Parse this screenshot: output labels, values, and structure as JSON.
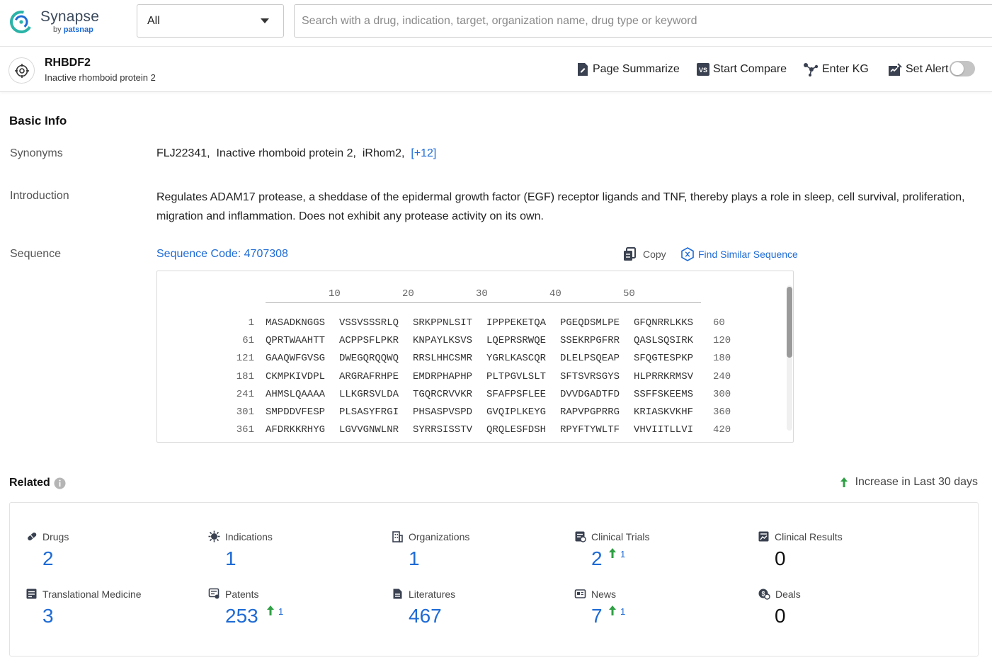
{
  "brand": {
    "name": "Synapse",
    "by": "by",
    "company": "patsnap"
  },
  "search": {
    "scope": "All",
    "placeholder": "Search with a drug, indication, target, organization name, drug type or keyword"
  },
  "entity": {
    "title": "RHBDF2",
    "subtitle": "Inactive rhomboid protein 2",
    "actions": {
      "summarize": "Page Summarize",
      "compare": "Start Compare",
      "kg": "Enter KG",
      "alert": "Set Alert"
    },
    "alert_enabled": false
  },
  "basic_info": {
    "title": "Basic Info",
    "synonyms_label": "Synonyms",
    "synonyms": [
      "FLJ22341,",
      "Inactive rhomboid protein 2,",
      "iRhom2,"
    ],
    "synonyms_more": "[+12]",
    "introduction_label": "Introduction",
    "introduction": "Regulates ADAM17 protease, a sheddase of the epidermal growth factor (EGF) receptor ligands and TNF, thereby plays a role in sleep, cell survival, proliferation, migration and inflammation. Does not exhibit any protease activity on its own.",
    "sequence_label": "Sequence",
    "sequence_code": "Sequence Code: 4707308",
    "copy_label": "Copy",
    "find_similar_label": "Find Similar Sequence",
    "ruler": [
      "10",
      "20",
      "30",
      "40",
      "50"
    ],
    "rows": [
      {
        "start": "1",
        "blocks": [
          "MASADKNGGS",
          "VSSVSSSRLQ",
          "SRKPPNLSIT",
          "IPPPEKETQA",
          "PGEQDSMLPE",
          "GFQNRRLKKS"
        ],
        "end": "60"
      },
      {
        "start": "61",
        "blocks": [
          "QPRTWAAHTT",
          "ACPPSFLPKR",
          "KNPAYLKSVS",
          "LQEPRSRWQE",
          "SSEKRPGFRR",
          "QASLSQSIRK"
        ],
        "end": "120"
      },
      {
        "start": "121",
        "blocks": [
          "GAAQWFGVSG",
          "DWEGQRQQWQ",
          "RRSLHHCSMR",
          "YGRLKASCQR",
          "DLELPSQEAP",
          "SFQGTESPKP"
        ],
        "end": "180"
      },
      {
        "start": "181",
        "blocks": [
          "CKMPKIVDPL",
          "ARGRAFRHPE",
          "EMDRPHAPHP",
          "PLTPGVLSLT",
          "SFTSVRSGYS",
          "HLPRRKRMSV"
        ],
        "end": "240"
      },
      {
        "start": "241",
        "blocks": [
          "AHMSLQAAAA",
          "LLKGRSVLDA",
          "TGQRCRVVKR",
          "SFAFPSFLEE",
          "DVVDGADTFD",
          "SSFFSKEEMS"
        ],
        "end": "300"
      },
      {
        "start": "301",
        "blocks": [
          "SMPDDVFESP",
          "PLSASYFRGI",
          "PHSASPVSPD",
          "GVQIPLKEYG",
          "RAPVPGPRRG",
          "KRIASKVKHF"
        ],
        "end": "360"
      },
      {
        "start": "361",
        "blocks": [
          "AFDRKKRHYG",
          "LGVVGNWLNR",
          "SYRRSISSTV",
          "QRQLESFDSH",
          "RPYFTYWLTF",
          "VHVIITLLVI"
        ],
        "end": "420"
      }
    ]
  },
  "related": {
    "title": "Related",
    "increase_label": "Increase in Last 30 days",
    "items": [
      {
        "label": "Drugs",
        "icon": "pill-icon",
        "count": "2",
        "inc": ""
      },
      {
        "label": "Indications",
        "icon": "virus-icon",
        "count": "1",
        "inc": ""
      },
      {
        "label": "Organizations",
        "icon": "building-icon",
        "count": "1",
        "inc": ""
      },
      {
        "label": "Clinical Trials",
        "icon": "clipboard-icon",
        "count": "2",
        "inc": "1"
      },
      {
        "label": "Clinical Results",
        "icon": "chart-doc-icon",
        "count": "0",
        "inc": ""
      },
      {
        "label": "Translational Medicine",
        "icon": "book-icon",
        "count": "3",
        "inc": ""
      },
      {
        "label": "Patents",
        "icon": "patent-icon",
        "count": "253",
        "inc": "1"
      },
      {
        "label": "Literatures",
        "icon": "document-icon",
        "count": "467",
        "inc": ""
      },
      {
        "label": "News",
        "icon": "newspaper-icon",
        "count": "7",
        "inc": "1"
      },
      {
        "label": "Deals",
        "icon": "handshake-icon",
        "count": "0",
        "inc": ""
      }
    ]
  },
  "colors": {
    "accent": "#1e6bd6",
    "increase": "#2ea043",
    "logo_teal": "#2bb3a8"
  }
}
